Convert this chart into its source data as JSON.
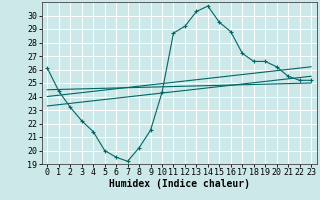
{
  "bg_color": "#cce8e8",
  "grid_color": "#ffffff",
  "line_color": "#006666",
  "xlabel": "Humidex (Indice chaleur)",
  "xlabel_fontsize": 7,
  "tick_fontsize": 6,
  "xlim": [
    -0.5,
    23.5
  ],
  "ylim": [
    19,
    31
  ],
  "yticks": [
    19,
    20,
    21,
    22,
    23,
    24,
    25,
    26,
    27,
    28,
    29,
    30
  ],
  "xticks": [
    0,
    1,
    2,
    3,
    4,
    5,
    6,
    7,
    8,
    9,
    10,
    11,
    12,
    13,
    14,
    15,
    16,
    17,
    18,
    19,
    20,
    21,
    22,
    23
  ],
  "curve1_x": [
    0,
    1,
    2,
    3,
    4,
    5,
    6,
    7,
    8,
    9,
    10,
    11,
    12,
    13,
    14,
    15,
    16,
    17,
    18,
    19,
    20,
    21,
    22,
    23
  ],
  "curve1_y": [
    26.1,
    24.4,
    23.2,
    22.2,
    21.4,
    20.0,
    19.5,
    19.2,
    20.2,
    21.5,
    24.3,
    28.7,
    29.2,
    30.3,
    30.7,
    29.5,
    28.8,
    27.2,
    26.6,
    26.6,
    26.2,
    25.5,
    25.2,
    25.2
  ],
  "line1_x": [
    0,
    23
  ],
  "line1_y": [
    23.3,
    25.5
  ],
  "line2_x": [
    0,
    23
  ],
  "line2_y": [
    24.0,
    26.2
  ],
  "line3_x": [
    0,
    23
  ],
  "line3_y": [
    24.5,
    25.0
  ]
}
